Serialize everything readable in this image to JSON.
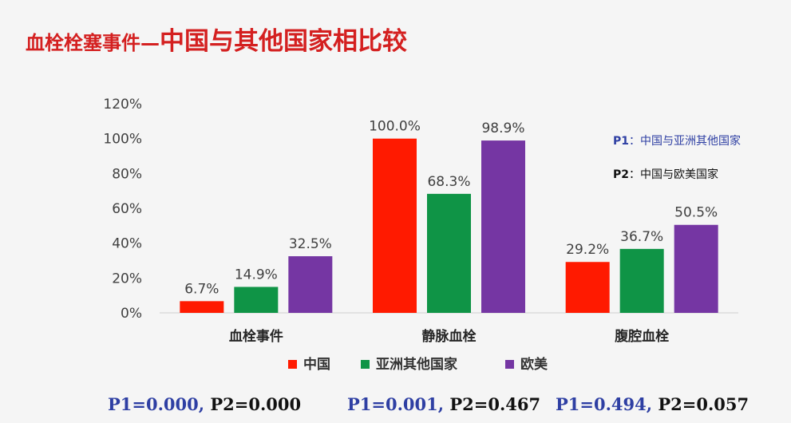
{
  "slide": {
    "title_part1": "血栓栓塞事件—",
    "title_part2": "中国与其他国家相比较"
  },
  "notes": {
    "p1_label": "P1",
    "p1_text": "：中国与亚洲其他国家",
    "p2_label": "P2",
    "p2_text": "：中国与欧美国家"
  },
  "pvalues": [
    {
      "p1": "P1=0.000,",
      "p2": "P2=0.000"
    },
    {
      "p1": "P1=0.001,",
      "p2": "P2=0.467"
    },
    {
      "p1": "P1=0.494,",
      "p2": "P2=0.057"
    }
  ],
  "chart_data": {
    "type": "bar",
    "categories": [
      "血栓事件",
      "静脉血栓",
      "腹腔血栓"
    ],
    "series": [
      {
        "name": "中国",
        "color": "#ff1a00",
        "values": [
          6.7,
          100.0,
          29.2
        ],
        "labels": [
          "6.7%",
          "100.0%",
          "29.2%"
        ]
      },
      {
        "name": "亚洲其他国家",
        "color": "#0f9446",
        "values": [
          14.9,
          68.3,
          36.7
        ],
        "labels": [
          "14.9%",
          "68.3%",
          "36.7%"
        ]
      },
      {
        "name": "欧美",
        "color": "#7536a3",
        "values": [
          32.5,
          98.9,
          50.5
        ],
        "labels": [
          "32.5%",
          "98.9%",
          "50.5%"
        ]
      }
    ],
    "ylim": [
      0,
      120
    ],
    "yticks": [
      "0%",
      "20%",
      "40%",
      "60%",
      "80%",
      "100%",
      "120%"
    ],
    "legend_position": "bottom"
  }
}
